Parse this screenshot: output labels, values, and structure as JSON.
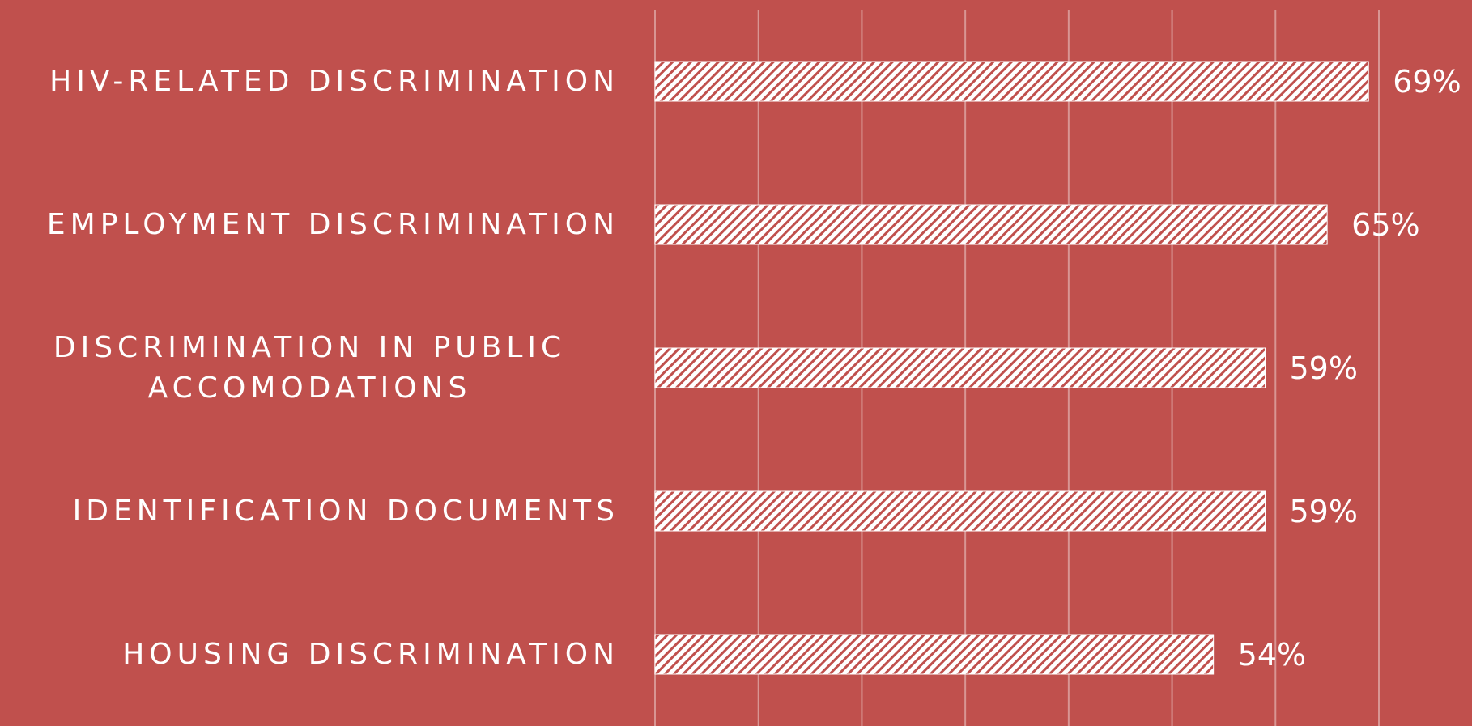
{
  "chart_data": {
    "type": "barh",
    "categories": [
      "HIV-RELATED DISCRIMINATION",
      "EMPLOYMENT DISCRIMINATION",
      "DISCRIMINATION IN PUBLIC ACCOMODATIONS",
      "IDENTIFICATION DOCUMENTS",
      "HOUSING DISCRIMINATION"
    ],
    "values": [
      69,
      65,
      59,
      59,
      54
    ],
    "value_labels": [
      "69%",
      "65%",
      "59%",
      "59%",
      "54%"
    ],
    "color": "#ffffff",
    "background": "#c0504d",
    "xlim": [
      0,
      70
    ],
    "xticks": [
      0,
      10,
      20,
      30,
      40,
      50,
      60,
      70
    ],
    "grid": true
  }
}
